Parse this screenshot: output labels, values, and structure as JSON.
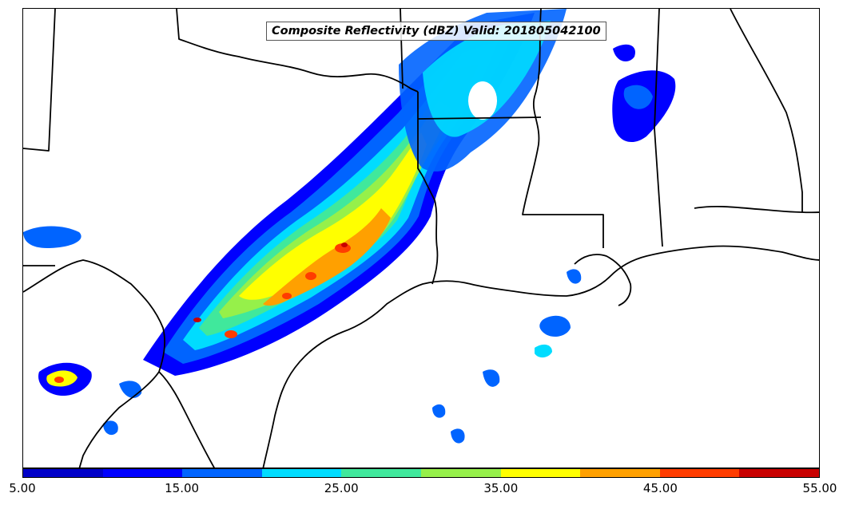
{
  "title": "Composite Reflectivity (dBZ) Valid: 201805042100",
  "colorbar": {
    "colors": [
      "#0000c8",
      "#0000ff",
      "#0064ff",
      "#00dcff",
      "#40e89c",
      "#96f04a",
      "#ffff00",
      "#ffa000",
      "#ff3c00",
      "#c80000"
    ],
    "ticks": [
      "5.00",
      "15.00",
      "25.00",
      "35.00",
      "45.00",
      "55.00"
    ]
  },
  "map": {
    "background": "#ffffff",
    "border_color": "#000000",
    "layers": [
      "state-borders",
      "coastline",
      "reflectivity"
    ]
  },
  "storm_palette": {
    "light": "#0000ff",
    "low": "#0064ff",
    "mid": "#00dcff",
    "moderate": "#40e89c",
    "elevated": "#96f04a",
    "strong": "#ffff00",
    "heavy": "#ffa000",
    "severe": "#ff3c00",
    "extreme": "#c80000"
  }
}
